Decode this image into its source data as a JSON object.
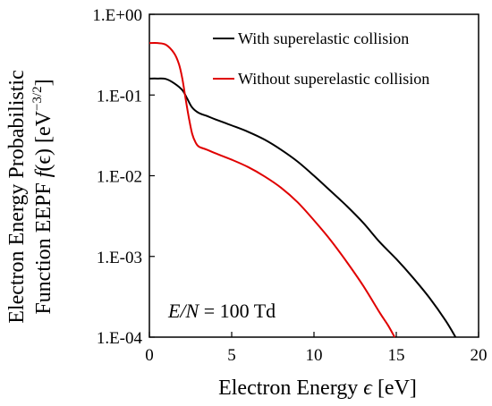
{
  "chart_data": {
    "type": "line",
    "xlabel": "Electron Energy ϵ [eV]",
    "xlabel_parts": {
      "prefix": "Electron Energy ",
      "symbol": "ϵ",
      "suffix": " [eV]"
    },
    "ylabel_line1": "Electron Energy Probabilistic",
    "ylabel_line2": {
      "prefix": "Function EEPF ",
      "f": "f",
      "arg": "(ϵ) ",
      "unit": "[eV",
      "exp": "−3/2",
      "close": "]"
    },
    "xlim": [
      0,
      20
    ],
    "ylim": [
      0.0001,
      1
    ],
    "yscale": "log",
    "xticks": [
      0,
      5,
      10,
      15,
      20
    ],
    "xtick_labels": [
      "0",
      "5",
      "10",
      "15",
      "20"
    ],
    "yticks": [
      1,
      0.1,
      0.01,
      0.001,
      0.0001
    ],
    "ytick_labels": [
      "1.E+00",
      "1.E-01",
      "1.E-02",
      "1.E-03",
      "1.E-04"
    ],
    "grid": false,
    "legend_position": "top-right",
    "annotation": {
      "italic": "E/N",
      "text": " = 100 Td"
    },
    "series": [
      {
        "name": "With superelastic collision",
        "color": "#000000",
        "x": [
          0,
          0.5,
          1.0,
          1.5,
          2.0,
          2.3,
          2.6,
          3.0,
          3.5,
          4,
          5,
          6,
          7,
          8,
          9,
          10,
          11,
          12,
          13,
          14,
          15,
          16,
          17,
          18,
          18.6
        ],
        "y": [
          0.16,
          0.16,
          0.158,
          0.14,
          0.115,
          0.09,
          0.07,
          0.06,
          0.055,
          0.05,
          0.042,
          0.035,
          0.028,
          0.021,
          0.015,
          0.01,
          0.0065,
          0.0042,
          0.0026,
          0.0015,
          0.00093,
          0.00055,
          0.00031,
          0.00016,
          0.0001
        ]
      },
      {
        "name": "Without superelastic collision",
        "color": "#e00000",
        "x": [
          0,
          0.5,
          1.0,
          1.5,
          1.8,
          2.0,
          2.2,
          2.4,
          2.6,
          2.8,
          3.0,
          3.5,
          4,
          5,
          6,
          7,
          8,
          9,
          10,
          11,
          12,
          13,
          14,
          14.5,
          14.9
        ],
        "y": [
          0.44,
          0.44,
          0.42,
          0.33,
          0.24,
          0.16,
          0.09,
          0.052,
          0.033,
          0.026,
          0.023,
          0.021,
          0.019,
          0.0158,
          0.0128,
          0.0098,
          0.0071,
          0.0047,
          0.0028,
          0.0016,
          0.00085,
          0.00043,
          0.0002,
          0.00014,
          0.0001
        ]
      }
    ]
  }
}
